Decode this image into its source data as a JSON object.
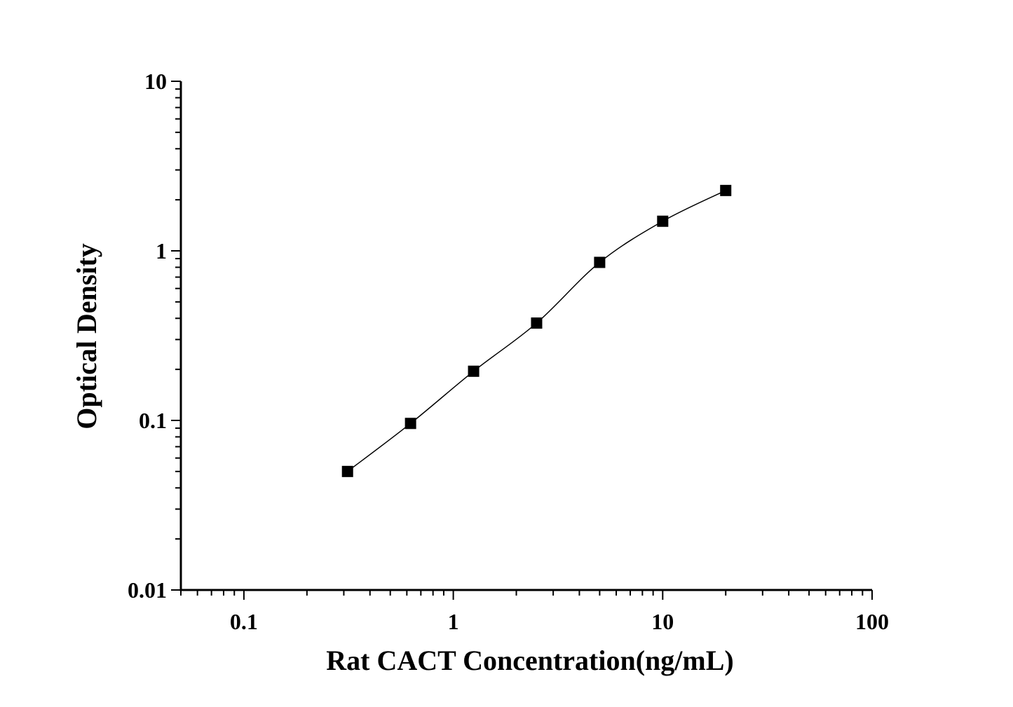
{
  "chart_data": {
    "type": "scatter",
    "title": "",
    "xlabel": "Rat CACT Concentration(ng/mL)",
    "ylabel": "Optical Density",
    "x_scale": "log",
    "y_scale": "log",
    "xlim": [
      0.05,
      100
    ],
    "ylim": [
      0.01,
      10
    ],
    "x_ticks": [
      "0.1",
      "1",
      "10",
      "100"
    ],
    "y_ticks": [
      "0.01",
      "0.1",
      "1",
      "10"
    ],
    "grid": false,
    "legend": "none",
    "series": [
      {
        "x": [
          0.3125,
          0.625,
          1.25,
          2.5,
          5,
          10,
          20
        ],
        "y": [
          0.05,
          0.096,
          0.195,
          0.375,
          0.855,
          1.495,
          2.27
        ],
        "marker": "square",
        "fit_line": true
      }
    ],
    "colors": {
      "marker": "#000000",
      "line": "#000000",
      "axis": "#000000"
    }
  }
}
